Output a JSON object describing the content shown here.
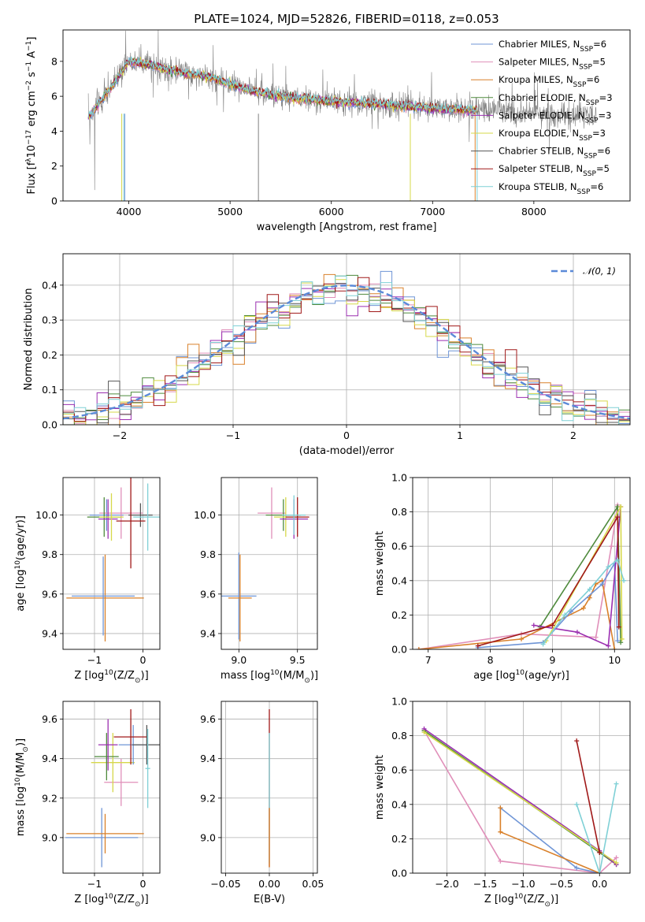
{
  "figure": {
    "title": "PLATE=1024, MJD=52826, FIBERID=0118, z=0.053"
  },
  "colors": [
    "#6f95d6",
    "#e08fb9",
    "#d9802a",
    "#4e8a3c",
    "#9b2fb0",
    "#d6d84a",
    "#555555",
    "#a01818",
    "#7fd0d6"
  ],
  "legend": [
    {
      "name": "Chabrier MILES, N",
      "sub": "SSP",
      "tail": "=6",
      "color": "#6f95d6"
    },
    {
      "name": "Salpeter MILES, N",
      "sub": "SSP",
      "tail": "=5",
      "color": "#e08fb9"
    },
    {
      "name": "Kroupa MILES, N",
      "sub": "SSP",
      "tail": "=6",
      "color": "#d9802a"
    },
    {
      "name": "Chabrier ELODIE, N",
      "sub": "SSP",
      "tail": "=3",
      "color": "#4e8a3c"
    },
    {
      "name": "Salpeter ELODIE, N",
      "sub": "SSP",
      "tail": "=3",
      "color": "#9b2fb0"
    },
    {
      "name": "Kroupa ELODIE, N",
      "sub": "SSP",
      "tail": "=3",
      "color": "#d6d84a"
    },
    {
      "name": "Chabrier STELIB, N",
      "sub": "SSP",
      "tail": "=6",
      "color": "#555555"
    },
    {
      "name": "Salpeter STELIB, N",
      "sub": "SSP",
      "tail": "=5",
      "color": "#a01818"
    },
    {
      "name": "Kroupa STELIB, N",
      "sub": "SSP",
      "tail": "=6",
      "color": "#7fd0d6"
    }
  ],
  "chart_data": [
    {
      "id": "spectrum",
      "type": "line",
      "xlabel": "wavelength [Angstrom, rest frame]",
      "ylabel_parts": [
        "Flux [f",
        "λ",
        "10",
        "−17",
        " erg cm",
        "−2",
        " s",
        "−1",
        " A",
        "−1",
        "]"
      ],
      "xlim": [
        3350,
        8950
      ],
      "ylim": [
        0,
        9.8
      ],
      "xticks": [
        4000,
        5000,
        6000,
        7000,
        8000
      ],
      "yticks": [
        0,
        2,
        4,
        6,
        8
      ],
      "continuum": {
        "x": [
          3600,
          3800,
          4000,
          4200,
          4400,
          4600,
          4800,
          5000,
          5200,
          5500,
          5800,
          6000,
          6300,
          6600,
          7000,
          7400,
          7700,
          8000,
          8300,
          8600
        ],
        "y": [
          4.8,
          6.3,
          8.0,
          7.8,
          7.5,
          7.3,
          7.1,
          6.7,
          6.3,
          6.0,
          5.8,
          5.7,
          5.6,
          5.5,
          5.3,
          5.2,
          5.1,
          5.0,
          4.9,
          4.9
        ]
      }
    },
    {
      "id": "residuals",
      "type": "line",
      "xlabel": "(data-model)/error",
      "ylabel": "Normed distribution",
      "xlim": [
        -2.5,
        2.5
      ],
      "ylim": [
        0,
        0.49
      ],
      "xticks": [
        -2,
        -1,
        0,
        1,
        2
      ],
      "yticks": [
        0.0,
        0.1,
        0.2,
        0.3,
        0.4
      ],
      "legend": "𝒩(0, 1)",
      "gaussian": {
        "mean": 0,
        "sigma": 1
      }
    },
    {
      "id": "age_vs_Z",
      "type": "scatter",
      "xlabel_parts": [
        "Z [log",
        "10",
        "(Z/Z",
        ":⊙",
        ")]"
      ],
      "ylabel_parts": [
        "age  [log",
        "10",
        "(age/yr)]"
      ],
      "xlim": [
        -1.65,
        0.35
      ],
      "ylim": [
        9.32,
        10.19
      ],
      "xticks": [
        -1,
        0
      ],
      "yticks": [
        9.4,
        9.6,
        9.8,
        10.0
      ],
      "points": [
        {
          "x": -0.75,
          "y": 10.0,
          "xerr": 0.35,
          "yerr": 0.08,
          "color": "#6f95d6"
        },
        {
          "x": -0.45,
          "y": 10.01,
          "xerr": 0.45,
          "yerr": 0.13,
          "color": "#e08fb9"
        },
        {
          "x": -0.78,
          "y": 9.58,
          "xerr": 0.8,
          "yerr": 0.22,
          "color": "#d9802a"
        },
        {
          "x": -0.82,
          "y": 9.59,
          "xerr": 0.65,
          "yerr": 0.2,
          "color": "#6f95d6"
        },
        {
          "x": -0.8,
          "y": 9.99,
          "xerr": 0.35,
          "yerr": 0.1,
          "color": "#4e8a3c"
        },
        {
          "x": -0.72,
          "y": 9.98,
          "xerr": 0.2,
          "yerr": 0.1,
          "color": "#9b2fb0"
        },
        {
          "x": -0.65,
          "y": 9.99,
          "xerr": 0.25,
          "yerr": 0.12,
          "color": "#d6d84a"
        },
        {
          "x": -0.05,
          "y": 10.0,
          "xerr": 0.25,
          "yerr": 0.06,
          "color": "#555555"
        },
        {
          "x": -0.25,
          "y": 9.97,
          "xerr": 0.3,
          "yerr": 0.24,
          "color": "#a01818"
        },
        {
          "x": 0.1,
          "y": 9.99,
          "xerr": 0.3,
          "yerr": 0.17,
          "color": "#7fd0d6"
        }
      ]
    },
    {
      "id": "age_vs_mass",
      "type": "scatter",
      "xlabel_parts": [
        "mass [log",
        "10",
        "(M/M",
        ":⊙",
        ")]"
      ],
      "ylabel": "",
      "xlim": [
        8.85,
        9.67
      ],
      "ylim": [
        9.32,
        10.19
      ],
      "xticks": [
        9.0,
        9.5
      ],
      "yticks": [
        9.4,
        9.6,
        9.8,
        10.0
      ],
      "points": [
        {
          "x": 9.0,
          "y": 9.59,
          "xerr": 0.15,
          "yerr": 0.22,
          "color": "#6f95d6"
        },
        {
          "x": 9.01,
          "y": 9.58,
          "xerr": 0.1,
          "yerr": 0.22,
          "color": "#d9802a"
        },
        {
          "x": 9.28,
          "y": 10.01,
          "xerr": 0.12,
          "yerr": 0.13,
          "color": "#e08fb9"
        },
        {
          "x": 9.38,
          "y": 10.0,
          "xerr": 0.15,
          "yerr": 0.08,
          "color": "#4e8a3c"
        },
        {
          "x": 9.4,
          "y": 9.99,
          "xerr": 0.1,
          "yerr": 0.1,
          "color": "#d6d84a"
        },
        {
          "x": 9.47,
          "y": 9.98,
          "xerr": 0.12,
          "yerr": 0.1,
          "color": "#9b2fb0"
        },
        {
          "x": 9.5,
          "y": 9.99,
          "xerr": 0.1,
          "yerr": 0.1,
          "color": "#a01818"
        },
        {
          "x": 9.47,
          "y": 10.0,
          "xerr": 0.1,
          "yerr": 0.1,
          "color": "#7fd0d6"
        }
      ]
    },
    {
      "id": "weight_vs_age",
      "type": "line",
      "xlabel_parts": [
        "age  [log",
        "10",
        "(age/yr)]"
      ],
      "ylabel": "mass weight",
      "xlim": [
        6.75,
        10.25
      ],
      "ylim": [
        0,
        1.0
      ],
      "xticks": [
        7,
        8,
        9,
        10
      ],
      "yticks": [
        0.0,
        0.2,
        0.4,
        0.6,
        0.8,
        1.0
      ],
      "series": [
        {
          "color": "#e08fb9",
          "x": [
            6.85,
            8.5,
            9.7,
            9.95,
            10.05
          ],
          "y": [
            0.0,
            0.09,
            0.07,
            0.6,
            0.84
          ]
        },
        {
          "color": "#d9802a",
          "x": [
            6.85,
            8.5,
            9.5,
            9.6,
            9.7,
            9.8,
            10.0
          ],
          "y": [
            0.0,
            0.06,
            0.24,
            0.3,
            0.38,
            0.4,
            0.0
          ]
        },
        {
          "color": "#6f95d6",
          "x": [
            7.8,
            8.85,
            9.3,
            9.8,
            10.0,
            10.05
          ],
          "y": [
            0.01,
            0.04,
            0.22,
            0.38,
            0.5,
            0.05
          ]
        },
        {
          "color": "#4e8a3c",
          "x": [
            8.8,
            10.05,
            10.1
          ],
          "y": [
            0.13,
            0.83,
            0.04
          ]
        },
        {
          "color": "#9b2fb0",
          "x": [
            8.7,
            9.4,
            9.9,
            10.1
          ],
          "y": [
            0.14,
            0.1,
            0.02,
            0.83
          ]
        },
        {
          "color": "#d6d84a",
          "x": [
            8.9,
            10.1,
            10.12
          ],
          "y": [
            0.05,
            0.83,
            0.06
          ]
        },
        {
          "color": "#a01818",
          "x": [
            7.8,
            9.0,
            10.05,
            10.07
          ],
          "y": [
            0.02,
            0.14,
            0.77,
            0.13
          ]
        },
        {
          "color": "#7fd0d6",
          "x": [
            8.85,
            9.2,
            9.6,
            9.9,
            10.05,
            10.15
          ],
          "y": [
            0.03,
            0.2,
            0.35,
            0.48,
            0.52,
            0.4
          ]
        }
      ]
    },
    {
      "id": "mass_vs_Z",
      "type": "scatter",
      "xlabel_parts": [
        "Z [log",
        "10",
        "(Z/Z",
        ":⊙",
        ")]"
      ],
      "ylabel_parts": [
        "mass [log",
        "10",
        "(M/M",
        ":⊙",
        ")]"
      ],
      "xlim": [
        -1.65,
        0.35
      ],
      "ylim": [
        8.82,
        9.69
      ],
      "xticks": [
        -1,
        0
      ],
      "yticks": [
        9.0,
        9.2,
        9.4,
        9.6
      ],
      "points": [
        {
          "x": -0.85,
          "y": 9.0,
          "xerr": 0.75,
          "yerr": 0.15,
          "color": "#6f95d6"
        },
        {
          "x": -0.78,
          "y": 9.02,
          "xerr": 0.8,
          "yerr": 0.1,
          "color": "#d9802a"
        },
        {
          "x": -0.45,
          "y": 9.28,
          "xerr": 0.35,
          "yerr": 0.12,
          "color": "#e08fb9"
        },
        {
          "x": -0.62,
          "y": 9.38,
          "xerr": 0.45,
          "yerr": 0.15,
          "color": "#d6d84a"
        },
        {
          "x": -0.75,
          "y": 9.41,
          "xerr": 0.25,
          "yerr": 0.12,
          "color": "#4e8a3c"
        },
        {
          "x": -0.72,
          "y": 9.47,
          "xerr": 0.2,
          "yerr": 0.13,
          "color": "#9b2fb0"
        },
        {
          "x": -0.2,
          "y": 9.47,
          "xerr": 0.3,
          "yerr": 0.1,
          "color": "#6f95d6"
        },
        {
          "x": -0.25,
          "y": 9.51,
          "xerr": 0.35,
          "yerr": 0.14,
          "color": "#a01818"
        },
        {
          "x": 0.08,
          "y": 9.47,
          "xerr": 0.3,
          "yerr": 0.1,
          "color": "#555555"
        },
        {
          "x": 0.1,
          "y": 9.35,
          "xerr": 0.05,
          "yerr": 0.2,
          "color": "#7fd0d6"
        }
      ]
    },
    {
      "id": "mass_vs_ebv",
      "type": "scatter",
      "xlabel": "E(B-V)",
      "ylabel": "",
      "xlim": [
        -0.055,
        0.055
      ],
      "ylim": [
        8.82,
        9.69
      ],
      "xticks": [
        -0.05,
        0.0,
        0.05
      ],
      "yticks": [
        9.0,
        9.2,
        9.4,
        9.6
      ],
      "xtick_labels": [
        "−0.05",
        "0.00",
        "0.05"
      ],
      "points": [
        {
          "x": 0.0,
          "y": 9.25,
          "xerr": 0.0,
          "yerr": 0.4,
          "color": "#a01818"
        },
        {
          "x": 0.0,
          "y": 9.2,
          "xerr": 0.0,
          "yerr": 0.33,
          "color": "#7fd0d6"
        },
        {
          "x": 0.0,
          "y": 9.0,
          "xerr": 0.0,
          "yerr": 0.15,
          "color": "#d9802a"
        }
      ]
    },
    {
      "id": "weight_vs_Z",
      "type": "line",
      "xlabel_parts": [
        "Z [log",
        "10",
        "(Z/Z",
        ":⊙",
        ")]"
      ],
      "ylabel": "mass weight",
      "xlim": [
        -2.45,
        0.4
      ],
      "ylim": [
        0,
        1.0
      ],
      "xticks": [
        -2.0,
        -1.5,
        -1.0,
        -0.5,
        0.0
      ],
      "yticks": [
        0.0,
        0.2,
        0.4,
        0.6,
        0.8,
        1.0
      ],
      "xtick_labels": [
        "−2.0",
        "−1.5",
        "−1.0",
        "−0.5",
        "0.0"
      ],
      "series": [
        {
          "color": "#e08fb9",
          "x": [
            -2.3,
            -1.3,
            0.0,
            0.22
          ],
          "y": [
            0.83,
            0.07,
            0.0,
            0.09
          ]
        },
        {
          "color": "#6f95d6",
          "x": [
            -1.3,
            -0.3,
            0.0
          ],
          "y": [
            0.38,
            0.03,
            0.0
          ]
        },
        {
          "color": "#d9802a",
          "x": [
            -1.3,
            -1.3,
            0.0
          ],
          "y": [
            0.38,
            0.24,
            0.0
          ]
        },
        {
          "color": "#4e8a3c",
          "x": [
            -2.3,
            0.0,
            0.22
          ],
          "y": [
            0.83,
            0.12,
            0.05
          ]
        },
        {
          "color": "#9b2fb0",
          "x": [
            -2.3,
            0.0,
            0.22
          ],
          "y": [
            0.84,
            0.13,
            0.05
          ]
        },
        {
          "color": "#d6d84a",
          "x": [
            -2.3,
            0.22
          ],
          "y": [
            0.82,
            0.06
          ]
        },
        {
          "color": "#a01818",
          "x": [
            -0.3,
            0.0
          ],
          "y": [
            0.77,
            0.12
          ]
        },
        {
          "color": "#7fd0d6",
          "x": [
            -0.3,
            0.0,
            0.22
          ],
          "y": [
            0.4,
            0.0,
            0.52
          ]
        }
      ]
    }
  ]
}
